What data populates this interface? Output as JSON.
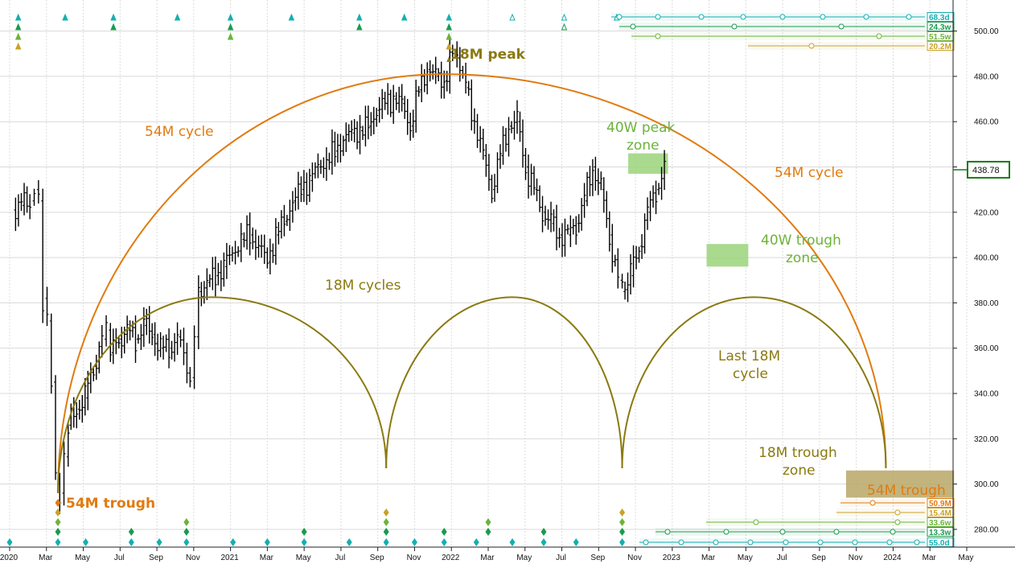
{
  "chart_data": {
    "type": "line",
    "subtype": "ohlc-weekly-price-bars",
    "title": "",
    "xlabel": "",
    "ylabel": "",
    "ylim": [
      264,
      513
    ],
    "y_ticks": [
      {
        "value": 280,
        "label": "280.00"
      },
      {
        "value": 300,
        "label": "300.00"
      },
      {
        "value": 320,
        "label": "320.00"
      },
      {
        "value": 340,
        "label": "340.00"
      },
      {
        "value": 360,
        "label": "360.00"
      },
      {
        "value": 380,
        "label": "380.00"
      },
      {
        "value": 400,
        "label": "400.00"
      },
      {
        "value": 420,
        "label": "420.00"
      },
      {
        "value": 440,
        "label": "440.00"
      },
      {
        "value": 460,
        "label": "460.00"
      },
      {
        "value": 480,
        "label": "480.00"
      },
      {
        "value": 500,
        "label": "500.00"
      }
    ],
    "x_ticks": [
      {
        "date": "2020-01",
        "label": "2020"
      },
      {
        "date": "2020-03",
        "label": "Mar"
      },
      {
        "date": "2020-05",
        "label": "May"
      },
      {
        "date": "2020-07",
        "label": "Jul"
      },
      {
        "date": "2020-09",
        "label": "Sep"
      },
      {
        "date": "2020-11",
        "label": "Nov"
      },
      {
        "date": "2021-01",
        "label": "2021"
      },
      {
        "date": "2021-03",
        "label": "Mar"
      },
      {
        "date": "2021-05",
        "label": "May"
      },
      {
        "date": "2021-07",
        "label": "Jul"
      },
      {
        "date": "2021-09",
        "label": "Sep"
      },
      {
        "date": "2021-11",
        "label": "Nov"
      },
      {
        "date": "2022-01",
        "label": "2022"
      },
      {
        "date": "2022-03",
        "label": "Mar"
      },
      {
        "date": "2022-05",
        "label": "May"
      },
      {
        "date": "2022-07",
        "label": "Jul"
      },
      {
        "date": "2022-09",
        "label": "Sep"
      },
      {
        "date": "2022-11",
        "label": "Nov"
      },
      {
        "date": "2023-01",
        "label": "2023"
      },
      {
        "date": "2023-03",
        "label": "Mar"
      },
      {
        "date": "2023-05",
        "label": "May"
      },
      {
        "date": "2023-07",
        "label": "Jul"
      },
      {
        "date": "2023-09",
        "label": "Sep"
      },
      {
        "date": "2023-11",
        "label": "Nov"
      },
      {
        "date": "2024-01",
        "label": "2024"
      },
      {
        "date": "2024-03",
        "label": "Mar"
      },
      {
        "date": "2024-05",
        "label": "May"
      }
    ],
    "grid": true,
    "last_price": {
      "value": 438.78,
      "label": "438.78"
    },
    "price_series": {
      "name": "",
      "points": [
        [
          "2020-01-06",
          421
        ],
        [
          "2020-01-20",
          423
        ],
        [
          "2020-02-03",
          425
        ],
        [
          "2020-02-10",
          430
        ],
        [
          "2020-02-17",
          425
        ],
        [
          "2020-02-24",
          382
        ],
        [
          "2020-03-02",
          372
        ],
        [
          "2020-03-09",
          345
        ],
        [
          "2020-03-16",
          300
        ],
        [
          "2020-03-23",
          296
        ],
        [
          "2020-03-30",
          312
        ],
        [
          "2020-04-06",
          326
        ],
        [
          "2020-04-20",
          333
        ],
        [
          "2020-05-04",
          338
        ],
        [
          "2020-05-18",
          352
        ],
        [
          "2020-06-01",
          364
        ],
        [
          "2020-06-08",
          368
        ],
        [
          "2020-06-15",
          358
        ],
        [
          "2020-06-29",
          364
        ],
        [
          "2020-07-13",
          368
        ],
        [
          "2020-07-27",
          364
        ],
        [
          "2020-08-10",
          370
        ],
        [
          "2020-08-24",
          366
        ],
        [
          "2020-09-07",
          360
        ],
        [
          "2020-09-21",
          360
        ],
        [
          "2020-10-05",
          365
        ],
        [
          "2020-10-26",
          347
        ],
        [
          "2020-11-02",
          365
        ],
        [
          "2020-11-09",
          385
        ],
        [
          "2020-11-23",
          389
        ],
        [
          "2020-12-07",
          392
        ],
        [
          "2020-12-21",
          396
        ],
        [
          "2021-01-04",
          402
        ],
        [
          "2021-01-18",
          408
        ],
        [
          "2021-02-01",
          410
        ],
        [
          "2021-02-15",
          405
        ],
        [
          "2021-03-01",
          398
        ],
        [
          "2021-03-15",
          410
        ],
        [
          "2021-03-29",
          416
        ],
        [
          "2021-04-12",
          425
        ],
        [
          "2021-04-26",
          430
        ],
        [
          "2021-05-10",
          434
        ],
        [
          "2021-05-24",
          440
        ],
        [
          "2021-06-07",
          443
        ],
        [
          "2021-06-21",
          447
        ],
        [
          "2021-07-05",
          452
        ],
        [
          "2021-07-19",
          455
        ],
        [
          "2021-08-02",
          456
        ],
        [
          "2021-08-16",
          458
        ],
        [
          "2021-08-30",
          465
        ],
        [
          "2021-09-13",
          468
        ],
        [
          "2021-09-27",
          470
        ],
        [
          "2021-10-11",
          468
        ],
        [
          "2021-10-25",
          458
        ],
        [
          "2021-11-08",
          474
        ],
        [
          "2021-11-22",
          483
        ],
        [
          "2021-12-06",
          480
        ],
        [
          "2021-12-20",
          478
        ],
        [
          "2022-01-03",
          490
        ],
        [
          "2022-01-10",
          488
        ],
        [
          "2022-01-24",
          475
        ],
        [
          "2022-02-07",
          460
        ],
        [
          "2022-02-21",
          445
        ],
        [
          "2022-03-07",
          430
        ],
        [
          "2022-03-21",
          445
        ],
        [
          "2022-04-04",
          458
        ],
        [
          "2022-04-18",
          460
        ],
        [
          "2022-05-02",
          440
        ],
        [
          "2022-05-16",
          430
        ],
        [
          "2022-05-30",
          420
        ],
        [
          "2022-06-13",
          415
        ],
        [
          "2022-06-27",
          410
        ],
        [
          "2022-07-11",
          410
        ],
        [
          "2022-07-25",
          415
        ],
        [
          "2022-08-08",
          425
        ],
        [
          "2022-08-22",
          440
        ],
        [
          "2022-09-05",
          430
        ],
        [
          "2022-09-19",
          410
        ],
        [
          "2022-10-03",
          390
        ],
        [
          "2022-10-10",
          385
        ],
        [
          "2022-10-24",
          392
        ],
        [
          "2022-11-07",
          405
        ],
        [
          "2022-11-21",
          420
        ],
        [
          "2022-12-05",
          430
        ],
        [
          "2022-12-19",
          438.78
        ]
      ]
    },
    "cycle_lines": [
      {
        "name": "54M cycle",
        "color": "#e07b10",
        "trough_date": "2020-03-20",
        "peak_date": "2021-12-20",
        "next_trough_date": "2023-12-20",
        "trough_value": 296,
        "peak_value": 481,
        "next_trough_value": 307
      },
      {
        "name": "18M cycles",
        "color": "#8a7a10",
        "trough_date": "2020-03-20",
        "peak_date": "2020-12-01",
        "next_trough_date": "2021-09-15",
        "trough_value": 296,
        "peak_value": 382.5,
        "next_trough_value": 307
      },
      {
        "name": "18M cycles",
        "color": "#8a7a10",
        "trough_date": "2021-09-15",
        "peak_date": "2022-04-10",
        "next_trough_date": "2022-10-10",
        "trough_value": 307,
        "peak_value": 382.5,
        "next_trough_value": 307
      },
      {
        "name": "Last 18M cycle",
        "color": "#8a7a10",
        "trough_date": "2022-10-10",
        "peak_date": "2023-05-15",
        "next_trough_date": "2023-12-20",
        "trough_value": 307,
        "peak_value": 382.5,
        "next_trough_value": 307
      }
    ],
    "zones": [
      {
        "name": "40W peak zone",
        "color": "#9ad47a",
        "x0": "2022-10-20",
        "x1": "2022-12-25",
        "y0": 437,
        "y1": 446
      },
      {
        "name": "40W trough zone",
        "color": "#9ad47a",
        "x0": "2023-02-25",
        "x1": "2023-05-05",
        "y0": 396,
        "y1": 406
      },
      {
        "name": "18M trough zone",
        "color": "#b9a766",
        "x0": "2023-10-15",
        "x1": "2024-04-10",
        "y0": 294,
        "y1": 306
      }
    ],
    "annotations": [
      {
        "text": "18M peak",
        "color": "#8a7a10",
        "weight": "bold"
      },
      {
        "text": "54M trough",
        "color": "#e07b10",
        "weight": "bold"
      },
      {
        "text": "54M cycle",
        "color": "#e07b10",
        "weight": "normal"
      },
      {
        "text": "54M cycle",
        "color": "#e07b10",
        "weight": "normal"
      },
      {
        "text": "18M cycles",
        "color": "#8a7a10",
        "weight": "normal"
      },
      {
        "text": "40W peak",
        "color": "#6cb33a",
        "weight": "normal"
      },
      {
        "text": "zone",
        "color": "#6cb33a",
        "weight": "normal"
      },
      {
        "text": "40W trough",
        "color": "#6cb33a",
        "weight": "normal"
      },
      {
        "text": "zone",
        "color": "#6cb33a",
        "weight": "normal"
      },
      {
        "text": "Last 18M",
        "color": "#8a7a10",
        "weight": "normal"
      },
      {
        "text": "cycle",
        "color": "#8a7a10",
        "weight": "normal"
      },
      {
        "text": "18M trough",
        "color": "#8a7a10",
        "weight": "normal"
      },
      {
        "text": "zone",
        "color": "#8a7a10",
        "weight": "normal"
      },
      {
        "text": "54M trough",
        "color": "#e07b10",
        "weight": "normal"
      }
    ],
    "cycle_length_labels": [
      {
        "label": "68.3d",
        "group": "top",
        "color": "#13b0b0"
      },
      {
        "label": "24.3w",
        "group": "top",
        "color": "#1a9a50"
      },
      {
        "label": "51.5w",
        "group": "top",
        "color": "#6cb33a"
      },
      {
        "label": "20.2M",
        "group": "top",
        "color": "#c9a227"
      },
      {
        "label": "50.9M",
        "group": "bottom",
        "color": "#e07b10"
      },
      {
        "label": "15.4M",
        "group": "bottom",
        "color": "#c9a227"
      },
      {
        "label": "33.6w",
        "group": "bottom",
        "color": "#6cb33a"
      },
      {
        "label": "13.3w",
        "group": "bottom",
        "color": "#1a9a50"
      },
      {
        "label": "55.0d",
        "group": "bottom",
        "color": "#13b0b0"
      }
    ]
  }
}
